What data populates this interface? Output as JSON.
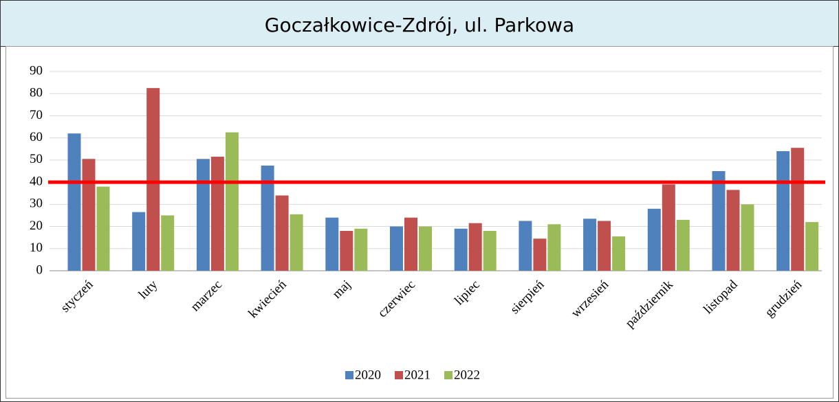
{
  "chart_data": {
    "type": "bar",
    "title": "Goczałkowice-Zdrój, ul. Parkowa",
    "categories": [
      "styczeń",
      "luty",
      "marzec",
      "kwiecień",
      "maj",
      "czerwiec",
      "lipiec",
      "sierpień",
      "wrzesień",
      "październik",
      "listopad",
      "grudzień"
    ],
    "series": [
      {
        "name": "2020",
        "color": "#4f81bd",
        "values": [
          62,
          26.5,
          50.5,
          47.5,
          24,
          20,
          19,
          22.5,
          23.5,
          28,
          45,
          54
        ]
      },
      {
        "name": "2021",
        "color": "#c0504d",
        "values": [
          50.5,
          82.5,
          51.5,
          34,
          18,
          24,
          21.5,
          14.5,
          22.5,
          39,
          36.5,
          55.5
        ]
      },
      {
        "name": "2022",
        "color": "#9bbb59",
        "values": [
          38,
          25,
          62.5,
          25.5,
          19,
          20,
          18,
          21,
          15.5,
          23,
          30,
          22
        ]
      }
    ],
    "ylim": [
      0,
      90
    ],
    "yticks": [
      0,
      10,
      20,
      30,
      40,
      50,
      60,
      70,
      80,
      90
    ],
    "grid": true,
    "reference_line": {
      "value": 40,
      "color": "#ff0000"
    },
    "legend": "bottom"
  }
}
